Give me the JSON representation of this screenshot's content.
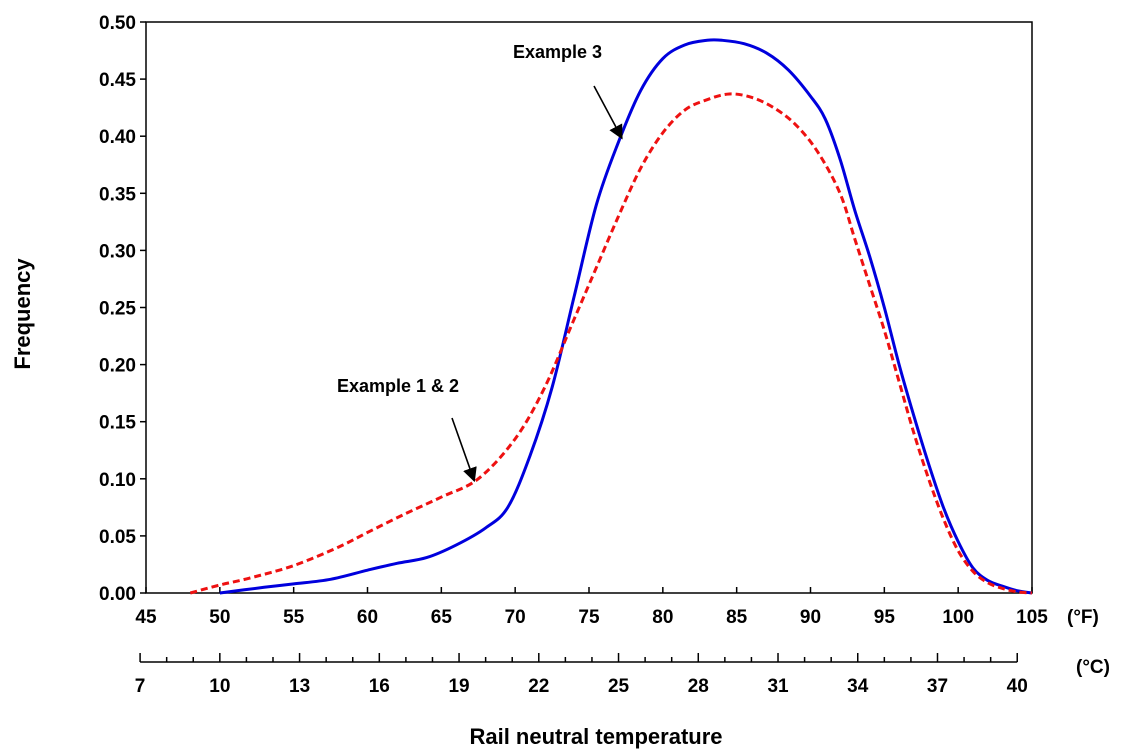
{
  "chart_data": {
    "type": "line",
    "title": "",
    "xlabel": "Rail neutral temperature",
    "ylabel": "Frequency",
    "xlim": [
      45,
      105
    ],
    "ylim": [
      0,
      0.5
    ],
    "x_unit": "(°F)",
    "x_ticks": [
      "45",
      "50",
      "55",
      "60",
      "65",
      "70",
      "75",
      "80",
      "85",
      "90",
      "95",
      "100",
      "105"
    ],
    "y_ticks": [
      "0.00",
      "0.05",
      "0.10",
      "0.15",
      "0.20",
      "0.25",
      "0.30",
      "0.35",
      "0.40",
      "0.45",
      "0.50"
    ],
    "secondary_x_axis": {
      "unit": "(°C)",
      "ticks": [
        "7",
        "10",
        "13",
        "16",
        "19",
        "22",
        "25",
        "28",
        "31",
        "34",
        "37",
        "40"
      ]
    },
    "grid": false,
    "legend": "none",
    "series": [
      {
        "label": "Example 3",
        "color": "#0000dd",
        "style": "solid",
        "x": [
          50.0,
          53.0,
          55.0,
          57.5,
          60.0,
          62.0,
          64.0,
          66.0,
          68.0,
          69.5,
          71.0,
          72.5,
          74.0,
          75.5,
          77.0,
          78.5,
          80.0,
          81.5,
          83.0,
          84.0,
          85.5,
          87.0,
          88.5,
          90.0,
          91.0,
          92.0,
          93.0,
          94.0,
          95.0,
          96.0,
          97.0,
          98.0,
          99.0,
          100.0,
          101.0,
          102.0,
          103.0,
          104.0,
          105.0
        ],
        "y": [
          0.0,
          0.005,
          0.008,
          0.012,
          0.02,
          0.026,
          0.031,
          0.042,
          0.057,
          0.075,
          0.12,
          0.18,
          0.26,
          0.34,
          0.395,
          0.44,
          0.468,
          0.48,
          0.484,
          0.484,
          0.481,
          0.473,
          0.458,
          0.435,
          0.415,
          0.38,
          0.335,
          0.295,
          0.25,
          0.2,
          0.155,
          0.113,
          0.075,
          0.045,
          0.022,
          0.011,
          0.006,
          0.002,
          0.0
        ]
      },
      {
        "label": "Example 1 & 2",
        "color": "#ee1111",
        "style": "dashed",
        "x": [
          48.0,
          50.0,
          52.0,
          55.0,
          58.0,
          60.0,
          62.5,
          65.0,
          67.5,
          70.0,
          72.0,
          74.0,
          75.5,
          77.0,
          78.5,
          80.0,
          81.5,
          83.0,
          84.5,
          86.0,
          87.5,
          89.0,
          90.5,
          92.0,
          93.0,
          94.0,
          95.0,
          96.0,
          97.0,
          98.0,
          99.0,
          100.0,
          101.0,
          102.0,
          103.0,
          104.0,
          105.0
        ],
        "y": [
          0.0,
          0.007,
          0.013,
          0.024,
          0.04,
          0.053,
          0.069,
          0.084,
          0.1,
          0.135,
          0.18,
          0.24,
          0.285,
          0.33,
          0.372,
          0.403,
          0.423,
          0.432,
          0.437,
          0.434,
          0.425,
          0.41,
          0.386,
          0.35,
          0.31,
          0.27,
          0.23,
          0.185,
          0.14,
          0.1,
          0.065,
          0.037,
          0.019,
          0.009,
          0.004,
          0.001,
          0.0
        ]
      }
    ],
    "annotations": [
      {
        "text": "Example 3",
        "target_series": 0,
        "arrow_to": [
          77.5,
          0.4
        ]
      },
      {
        "text": "Example 1 & 2",
        "target_series": 1,
        "arrow_to": [
          67.5,
          0.1
        ]
      }
    ]
  }
}
